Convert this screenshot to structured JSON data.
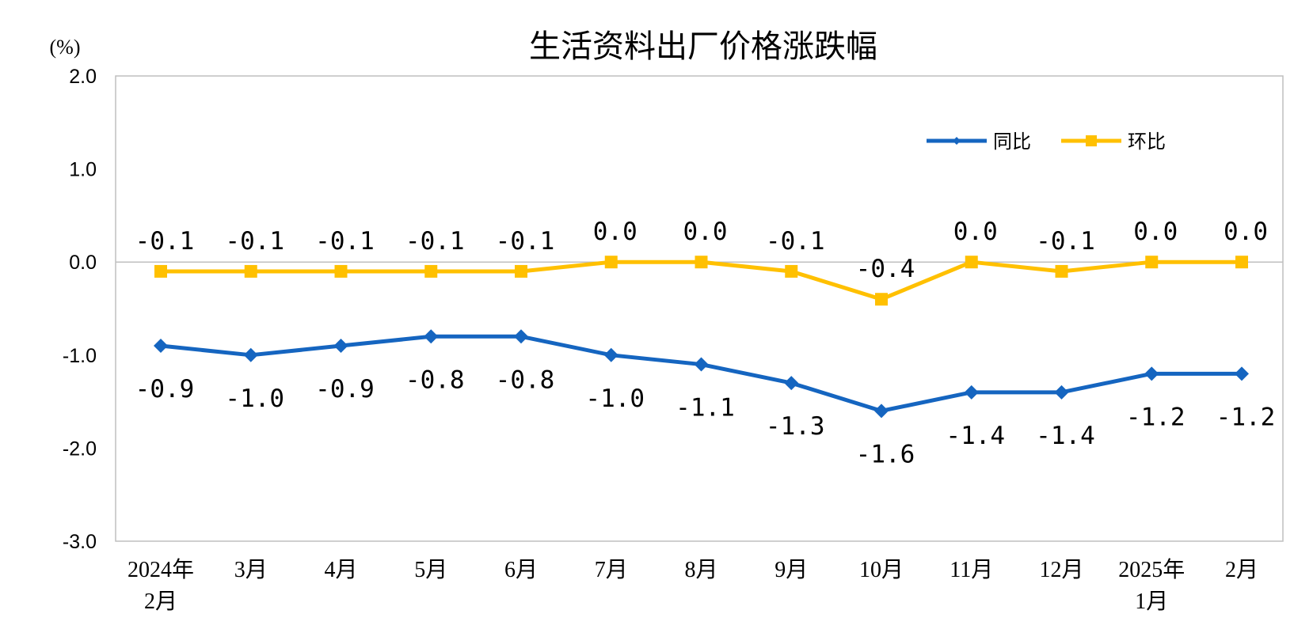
{
  "chart_data": {
    "type": "line",
    "title": "生活资料出厂价格涨跌幅",
    "unit_label": "(%)",
    "ylim": [
      -3.0,
      2.0
    ],
    "yticks": [
      "2.0",
      "1.0",
      "0.0",
      "-1.0",
      "-2.0",
      "-3.0"
    ],
    "ytick_values": [
      2.0,
      1.0,
      0.0,
      -1.0,
      -2.0,
      -3.0
    ],
    "categories": [
      [
        "2024年",
        "2月"
      ],
      [
        "3月"
      ],
      [
        "4月"
      ],
      [
        "5月"
      ],
      [
        "6月"
      ],
      [
        "7月"
      ],
      [
        "8月"
      ],
      [
        "9月"
      ],
      [
        "10月"
      ],
      [
        "11月"
      ],
      [
        "12月"
      ],
      [
        "2025年",
        "1月"
      ],
      [
        "2月"
      ]
    ],
    "grid": false,
    "legend_position": "top-right",
    "series": [
      {
        "name": "同比",
        "color": "#1565C0",
        "marker": "diamond",
        "values": [
          -0.9,
          -1.0,
          -0.9,
          -0.8,
          -0.8,
          -1.0,
          -1.1,
          -1.3,
          -1.6,
          -1.4,
          -1.4,
          -1.2,
          -1.2
        ],
        "labels": [
          "-0.9",
          "-1.0",
          "-0.9",
          "-0.8",
          "-0.8",
          "-1.0",
          "-1.1",
          "-1.3",
          "-1.6",
          "-1.4",
          "-1.4",
          "-1.2",
          "-1.2"
        ]
      },
      {
        "name": "环比",
        "color": "#FFC000",
        "marker": "square",
        "values": [
          -0.1,
          -0.1,
          -0.1,
          -0.1,
          -0.1,
          0.0,
          0.0,
          -0.1,
          -0.4,
          0.0,
          -0.1,
          0.0,
          0.0
        ],
        "labels": [
          "-0.1",
          "-0.1",
          "-0.1",
          "-0.1",
          "-0.1",
          "0.0",
          "0.0",
          "-0.1",
          "-0.4",
          "0.0",
          "-0.1",
          "0.0",
          "0.0"
        ]
      }
    ]
  }
}
